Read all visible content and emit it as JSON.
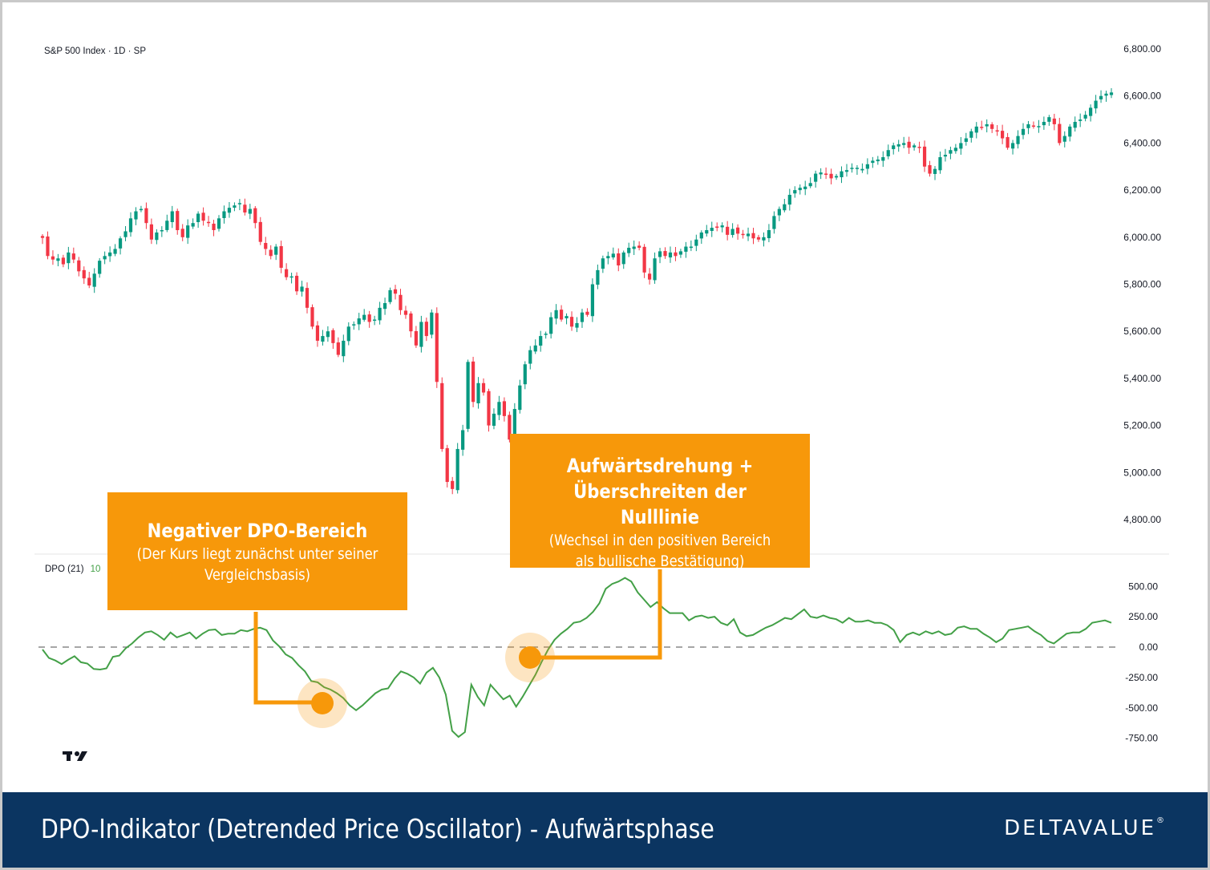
{
  "chart_data": [
    {
      "type": "candlestick",
      "title": "S&P 500 Index · 1D · SP",
      "ylim": [
        4700,
        6850
      ],
      "yticks": [
        4800,
        5000,
        5200,
        5400,
        5600,
        5800,
        6000,
        6200,
        6400,
        6600,
        6800
      ],
      "ytick_labels": [
        "4,800.00",
        "5,000.00",
        "5,200.00",
        "5,400.00",
        "5,600.00",
        "5,800.00",
        "6,000.00",
        "6,200.00",
        "6,400.00",
        "6,600.00",
        "6,800.00"
      ],
      "closes": [
        5997,
        5920,
        5905,
        5910,
        5885,
        5935,
        5905,
        5855,
        5825,
        5795,
        5845,
        5900,
        5920,
        5935,
        5950,
        5995,
        6025,
        6080,
        6110,
        6120,
        6060,
        5990,
        6020,
        6030,
        6070,
        6110,
        6030,
        6000,
        6050,
        6060,
        6100,
        6070,
        6060,
        6030,
        6080,
        6110,
        6125,
        6135,
        6140,
        6105,
        6120,
        6060,
        5980,
        5950,
        5920,
        5960,
        5870,
        5830,
        5830,
        5770,
        5790,
        5700,
        5620,
        5560,
        5580,
        5600,
        5550,
        5500,
        5560,
        5620,
        5630,
        5655,
        5670,
        5640,
        5650,
        5700,
        5720,
        5775,
        5760,
        5690,
        5670,
        5600,
        5540,
        5640,
        5580,
        5680,
        5385,
        5100,
        4960,
        4930,
        5100,
        5180,
        5470,
        5300,
        5380,
        5340,
        5200,
        5250,
        5300,
        5240,
        5140,
        5270,
        5370,
        5460,
        5520,
        5540,
        5580,
        5590,
        5660,
        5690,
        5650,
        5665,
        5620,
        5635,
        5680,
        5670,
        5800,
        5860,
        5910,
        5920,
        5930,
        5880,
        5935,
        5955,
        5960,
        5955,
        5850,
        5820,
        5910,
        5940,
        5920,
        5935,
        5920,
        5940,
        5960,
        5960,
        5990,
        6020,
        6030,
        6040,
        6040,
        6050,
        6010,
        6035,
        6015,
        6010,
        6015,
        5995,
        5990,
        6000,
        6030,
        6090,
        6120,
        6140,
        6180,
        6200,
        6210,
        6215,
        6230,
        6270,
        6275,
        6265,
        6250,
        6260,
        6280,
        6285,
        6290,
        6290,
        6290,
        6310,
        6325,
        6330,
        6340,
        6370,
        6390,
        6395,
        6400,
        6380,
        6390,
        6385,
        6300,
        6270,
        6290,
        6340,
        6350,
        6370,
        6380,
        6400,
        6420,
        6450,
        6470,
        6465,
        6480,
        6460,
        6450,
        6420,
        6380,
        6400,
        6430,
        6460,
        6480,
        6470,
        6470,
        6490,
        6510,
        6480,
        6400,
        6430,
        6470,
        6490,
        6500,
        6520,
        6550,
        6580,
        6600,
        6610,
        6615
      ]
    },
    {
      "type": "line",
      "title": "DPO (21)",
      "legend_value": "10",
      "ylim": [
        -900,
        650
      ],
      "yticks": [
        -750,
        -500,
        -250,
        0,
        250,
        500
      ],
      "ytick_labels": [
        "-750.00",
        "-500.00",
        "-250.00",
        "0.00",
        "250.00",
        "500.00"
      ],
      "zero_line": "dashed",
      "series": [
        {
          "values": [
            -20,
            -90,
            -110,
            -140,
            -105,
            -75,
            -125,
            -135,
            -180,
            -185,
            -175,
            -80,
            -70,
            -10,
            30,
            80,
            120,
            130,
            100,
            60,
            120,
            80,
            100,
            120,
            70,
            110,
            140,
            145,
            100,
            110,
            110,
            140,
            130,
            150,
            160,
            140,
            55,
            5,
            -60,
            -90,
            -150,
            -200,
            -280,
            -290,
            -330,
            -350,
            -380,
            -420,
            -480,
            -520,
            -480,
            -430,
            -380,
            -350,
            -340,
            -260,
            -200,
            -220,
            -250,
            -300,
            -210,
            -170,
            -250,
            -390,
            -690,
            -740,
            -700,
            -310,
            -410,
            -480,
            -310,
            -370,
            -430,
            -400,
            -490,
            -410,
            -320,
            -230,
            -120,
            -20,
            60,
            110,
            150,
            200,
            210,
            240,
            290,
            360,
            480,
            520,
            540,
            570,
            540,
            450,
            390,
            330,
            370,
            320,
            280,
            280,
            280,
            220,
            250,
            260,
            240,
            250,
            200,
            180,
            230,
            120,
            90,
            100,
            130,
            160,
            180,
            210,
            240,
            230,
            270,
            310,
            250,
            240,
            260,
            240,
            230,
            200,
            240,
            210,
            210,
            220,
            200,
            200,
            180,
            140,
            40,
            100,
            120,
            100,
            130,
            110,
            130,
            100,
            110,
            160,
            170,
            150,
            150,
            110,
            80,
            40,
            70,
            140,
            150,
            160,
            170,
            130,
            100,
            50,
            30,
            70,
            110,
            120,
            120,
            150,
            200,
            210,
            220,
            200
          ]
        }
      ]
    }
  ],
  "colors": {
    "up": "#089981",
    "down": "#f23645",
    "dpo_line": "#43a047",
    "zero_line": "#888888",
    "annotation": "#f7980a",
    "footer": "#0b3561"
  },
  "logo": "tradingview-logo",
  "annotations": [
    {
      "title": "Negativer DPO-Bereich",
      "subtitle": "(Der Kurs liegt zunächst unter seiner Vergleichsbasis)"
    },
    {
      "title": "Aufwärtsdrehung + Überschreiten der Nulllinie",
      "subtitle": "(Wechsel in den positiven Bereich als bullische Bestätigung)"
    }
  ],
  "footer": {
    "title": "DPO-Indikator (Detrended Price Oscillator) - Aufwärtsphase",
    "brand": "DELTAVALUE",
    "brand_mark": "®"
  }
}
